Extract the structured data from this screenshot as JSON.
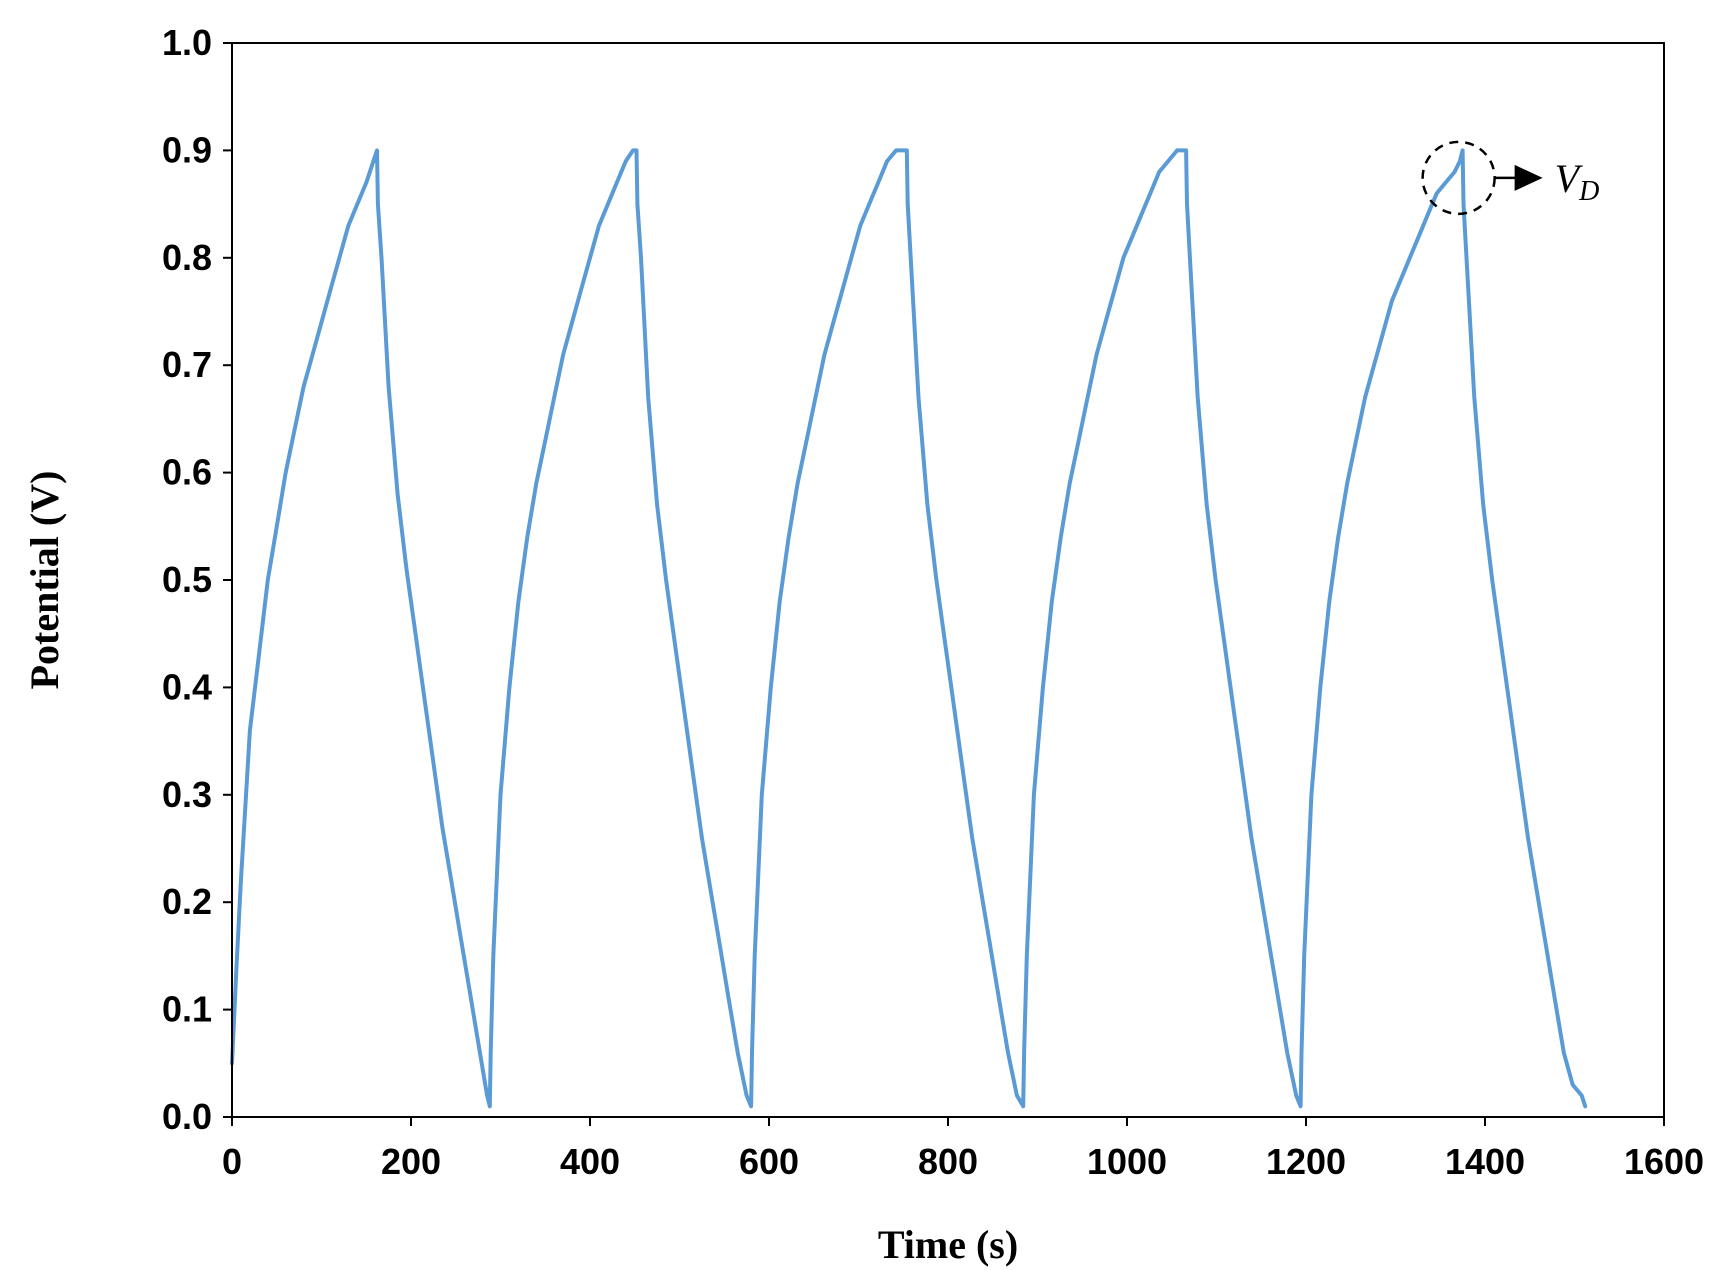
{
  "chart_data": {
    "type": "line",
    "title": "",
    "xlabel": "Time (s)",
    "ylabel": "Potential (V)",
    "xlim": [
      0,
      1600
    ],
    "ylim": [
      0,
      1.0
    ],
    "xticks": [
      0,
      200,
      400,
      600,
      800,
      1000,
      1200,
      1400,
      1600
    ],
    "xtick_labels": [
      "0",
      "200",
      "400",
      "600",
      "800",
      "1000",
      "1200",
      "1400",
      "1600"
    ],
    "yticks": [
      0,
      0.1,
      0.2,
      0.3,
      0.4,
      0.5,
      0.6,
      0.7,
      0.8,
      0.9,
      1.0
    ],
    "ytick_labels": [
      "0.0",
      "0.1",
      "0.2",
      "0.3",
      "0.4",
      "0.5",
      "0.6",
      "0.7",
      "0.8",
      "0.9",
      "1.0"
    ],
    "grid": false,
    "legend": "none",
    "line_color": "#5b9bd5",
    "series": [
      {
        "x": [
          0,
          5,
          10,
          20,
          30,
          40,
          50,
          60,
          70,
          80,
          90,
          100,
          110,
          120,
          130,
          140,
          150,
          158,
          162,
          163,
          167,
          175,
          185,
          195,
          205,
          215,
          225,
          235,
          245,
          255,
          265,
          275,
          285,
          288,
          289,
          292,
          300,
          310,
          320,
          330,
          340,
          350,
          360,
          370,
          380,
          390,
          400,
          410,
          420,
          430,
          440,
          448,
          452,
          453,
          457,
          465,
          475,
          485,
          495,
          505,
          515,
          525,
          535,
          545,
          555,
          565,
          575,
          580,
          581,
          584,
          592,
          602,
          612,
          622,
          632,
          642,
          652,
          662,
          672,
          682,
          692,
          702,
          712,
          722,
          732,
          742,
          750,
          754,
          755,
          759,
          767,
          777,
          787,
          797,
          807,
          817,
          827,
          837,
          847,
          857,
          867,
          877,
          884,
          885,
          888,
          896,
          906,
          916,
          926,
          936,
          946,
          956,
          966,
          976,
          986,
          996,
          1006,
          1016,
          1026,
          1036,
          1046,
          1056,
          1062,
          1066,
          1067,
          1071,
          1079,
          1089,
          1099,
          1109,
          1119,
          1129,
          1139,
          1149,
          1159,
          1169,
          1179,
          1189,
          1194,
          1195,
          1198,
          1206,
          1216,
          1226,
          1236,
          1246,
          1256,
          1266,
          1276,
          1286,
          1296,
          1306,
          1316,
          1326,
          1336,
          1346,
          1356,
          1366,
          1372,
          1375,
          1376,
          1380,
          1388,
          1398,
          1408,
          1418,
          1428,
          1438,
          1448,
          1458,
          1468,
          1478,
          1488,
          1498,
          1508,
          1512
        ],
        "y": [
          0.05,
          0.14,
          0.22,
          0.36,
          0.43,
          0.5,
          0.55,
          0.6,
          0.64,
          0.68,
          0.71,
          0.74,
          0.77,
          0.8,
          0.83,
          0.85,
          0.87,
          0.89,
          0.9,
          0.85,
          0.8,
          0.68,
          0.58,
          0.51,
          0.45,
          0.39,
          0.33,
          0.27,
          0.22,
          0.17,
          0.12,
          0.07,
          0.02,
          0.01,
          0.06,
          0.15,
          0.3,
          0.4,
          0.48,
          0.54,
          0.59,
          0.63,
          0.67,
          0.71,
          0.74,
          0.77,
          0.8,
          0.83,
          0.85,
          0.87,
          0.89,
          0.9,
          0.9,
          0.85,
          0.8,
          0.67,
          0.57,
          0.5,
          0.44,
          0.38,
          0.32,
          0.26,
          0.21,
          0.16,
          0.11,
          0.06,
          0.02,
          0.01,
          0.06,
          0.15,
          0.3,
          0.4,
          0.48,
          0.54,
          0.59,
          0.63,
          0.67,
          0.71,
          0.74,
          0.77,
          0.8,
          0.83,
          0.85,
          0.87,
          0.89,
          0.9,
          0.9,
          0.9,
          0.85,
          0.79,
          0.67,
          0.57,
          0.5,
          0.44,
          0.38,
          0.32,
          0.26,
          0.21,
          0.16,
          0.11,
          0.06,
          0.02,
          0.01,
          0.06,
          0.15,
          0.3,
          0.4,
          0.48,
          0.54,
          0.59,
          0.63,
          0.67,
          0.71,
          0.74,
          0.77,
          0.8,
          0.82,
          0.84,
          0.86,
          0.88,
          0.89,
          0.9,
          0.9,
          0.9,
          0.85,
          0.79,
          0.67,
          0.57,
          0.5,
          0.44,
          0.38,
          0.32,
          0.26,
          0.21,
          0.16,
          0.11,
          0.06,
          0.02,
          0.01,
          0.06,
          0.15,
          0.3,
          0.4,
          0.48,
          0.54,
          0.59,
          0.63,
          0.67,
          0.7,
          0.73,
          0.76,
          0.78,
          0.8,
          0.82,
          0.84,
          0.86,
          0.87,
          0.88,
          0.89,
          0.9,
          0.85,
          0.79,
          0.67,
          0.57,
          0.5,
          0.44,
          0.38,
          0.32,
          0.26,
          0.21,
          0.16,
          0.11,
          0.06,
          0.03,
          0.02,
          0.01
        ]
      }
    ],
    "annotations": [
      {
        "text": "V",
        "subscript": "D",
        "x": 1375,
        "y": 0.88
      }
    ]
  }
}
